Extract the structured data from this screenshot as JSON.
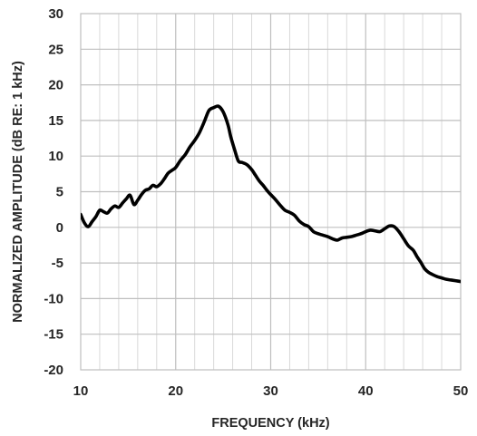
{
  "chart_data": {
    "type": "line",
    "title": "",
    "xlabel": "FREQUENCY (kHz)",
    "ylabel": "NORMALIZED AMPLITUDE (dB RE: 1 kHz)",
    "xlim": [
      10,
      50
    ],
    "ylim": [
      -20,
      30
    ],
    "x_major_ticks": [
      10,
      20,
      30,
      40,
      50
    ],
    "x_minor_step": 2,
    "y_ticks": [
      -20,
      -15,
      -10,
      -5,
      0,
      5,
      10,
      15,
      20,
      25,
      30
    ],
    "x_tick_labels": [
      "10",
      "20",
      "30",
      "40",
      "50"
    ],
    "y_tick_labels": [
      "-20",
      "-15",
      "-10",
      "-5",
      "0",
      "5",
      "10",
      "15",
      "20",
      "25",
      "30"
    ],
    "grid": true,
    "legend": "none",
    "line_color": "#000000",
    "grid_color": "#d9d9d9",
    "series": [
      {
        "x": [
          10,
          10.4,
          10.8,
          11.2,
          11.6,
          12.0,
          12.4,
          12.8,
          13.2,
          13.6,
          14.0,
          14.4,
          14.8,
          15.2,
          15.6,
          16.0,
          16.4,
          16.8,
          17.2,
          17.6,
          18.0,
          18.4,
          18.8,
          19.2,
          19.6,
          20.0,
          20.5,
          21.0,
          21.5,
          22.0,
          22.5,
          23.0,
          23.5,
          24.0,
          24.5,
          25.0,
          25.5,
          25.8,
          26.2,
          26.6,
          27.0,
          27.5,
          28.0,
          28.4,
          28.8,
          29.2,
          29.6,
          30.0,
          30.5,
          31.0,
          31.5,
          32.0,
          32.5,
          33.0,
          33.5,
          34.0,
          34.5,
          35.0,
          35.5,
          36.0,
          36.5,
          37.0,
          37.5,
          38.0,
          38.5,
          39.0,
          39.5,
          40.0,
          40.5,
          41.0,
          41.5,
          42.0,
          42.5,
          43.0,
          43.5,
          44.0,
          44.5,
          45.0,
          45.4,
          45.8,
          46.2,
          46.6,
          47.0,
          47.5,
          48.0,
          48.5,
          49.0,
          49.5,
          50.0
        ],
        "y": [
          1.8,
          0.6,
          0.1,
          0.8,
          1.5,
          2.4,
          2.2,
          2.0,
          2.6,
          3.0,
          2.8,
          3.4,
          4.0,
          4.5,
          3.2,
          3.8,
          4.6,
          5.2,
          5.4,
          5.9,
          5.7,
          6.1,
          6.8,
          7.6,
          8.0,
          8.4,
          9.4,
          10.2,
          11.3,
          12.2,
          13.3,
          14.8,
          16.4,
          16.8,
          17.0,
          16.2,
          14.4,
          12.7,
          10.9,
          9.3,
          9.1,
          8.8,
          8.1,
          7.3,
          6.5,
          5.9,
          5.2,
          4.6,
          3.9,
          3.1,
          2.4,
          2.1,
          1.7,
          0.9,
          0.4,
          0.1,
          -0.6,
          -0.9,
          -1.1,
          -1.3,
          -1.6,
          -1.8,
          -1.5,
          -1.4,
          -1.3,
          -1.1,
          -0.9,
          -0.6,
          -0.4,
          -0.5,
          -0.6,
          -0.2,
          0.2,
          0.1,
          -0.6,
          -1.6,
          -2.6,
          -3.2,
          -4.1,
          -4.9,
          -5.8,
          -6.3,
          -6.6,
          -6.9,
          -7.1,
          -7.3,
          -7.4,
          -7.5,
          -7.6
        ]
      }
    ]
  }
}
